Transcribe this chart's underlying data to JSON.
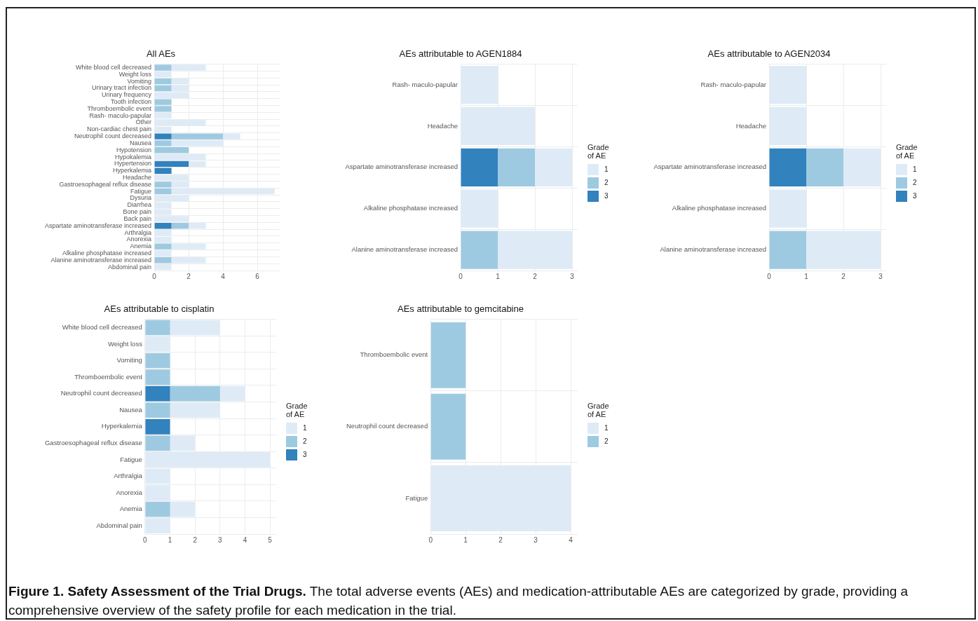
{
  "chart_data": [
    {
      "type": "bar",
      "title": "All AEs",
      "orientation": "horizontal",
      "stacked": true,
      "grid": true,
      "legend": false,
      "categories": [
        "White blood cell decreased",
        "Weight loss",
        "Vomiting",
        "Urinary tract infection",
        "Urinary frequency",
        "Tooth infection",
        "Thromboembolic event",
        "Rash- maculo-papular",
        "Other",
        "Non-cardiac chest pain",
        "Neutrophil count decreased",
        "Nausea",
        "Hypotension",
        "Hypokalemia",
        "Hypertension",
        "Hyperkalemia",
        "Headache",
        "Gastroesophageal reflux disease",
        "Fatigue",
        "Dysuria",
        "Diarrhea",
        "Bone pain",
        "Back pain",
        "Aspartate aminotransferase increased",
        "Arthralgia",
        "Anorexia",
        "Anemia",
        "Alkaline phosphatase increased",
        "Alanine aminotransferase increased",
        "Abdominal pain"
      ],
      "series": [
        {
          "name": "3",
          "color": "#3182bd",
          "values": [
            null,
            null,
            null,
            null,
            null,
            null,
            null,
            null,
            null,
            null,
            1,
            null,
            null,
            null,
            2,
            1,
            null,
            null,
            null,
            null,
            null,
            null,
            null,
            1,
            null,
            null,
            null,
            null,
            null,
            null
          ]
        },
        {
          "name": "2",
          "color": "#9ecae1",
          "values": [
            1,
            null,
            1,
            1,
            null,
            1,
            1,
            null,
            null,
            null,
            3,
            1,
            2,
            null,
            null,
            null,
            null,
            1,
            1,
            null,
            null,
            null,
            null,
            1,
            null,
            null,
            1,
            null,
            1,
            null
          ]
        },
        {
          "name": "1",
          "color": "#deebf7",
          "values": [
            2,
            1,
            1,
            1,
            2,
            null,
            null,
            1,
            3,
            1,
            1,
            3,
            null,
            3,
            1,
            null,
            2,
            1,
            6,
            2,
            1,
            1,
            2,
            1,
            1,
            1,
            2,
            1,
            2,
            1
          ]
        }
      ],
      "xlim": [
        0,
        7.3
      ],
      "xticks": [
        0,
        2,
        4,
        6
      ],
      "annotations": [
        "Figure 1. Safety Assessment of the Trial Drugs.",
        "The total adverse events (AEs) and medication-attributable AEs are categorized by grade, providing a comprehensive overview of the safety profile for each medication in the trial."
      ]
    },
    {
      "type": "bar",
      "title": "AEs attributable to AGEN1884",
      "orientation": "horizontal",
      "stacked": true,
      "grid": true,
      "legend": "right",
      "legend_title": "Grade of AE",
      "categories": [
        "Rash- maculo-papular",
        "Headache",
        "Aspartate aminotransferase increased",
        "Alkaline phosphatase increased",
        "Alanine aminotransferase increased"
      ],
      "series": [
        {
          "name": "3",
          "color": "#3182bd",
          "values": [
            null,
            null,
            1,
            null,
            null
          ]
        },
        {
          "name": "2",
          "color": "#9ecae1",
          "values": [
            null,
            null,
            1,
            null,
            1
          ]
        },
        {
          "name": "1",
          "color": "#deebf7",
          "values": [
            1,
            2,
            1,
            1,
            2
          ]
        }
      ],
      "xlim": [
        0,
        3.15
      ],
      "xticks": [
        0,
        1,
        2,
        3
      ]
    },
    {
      "type": "bar",
      "title": "AEs attributable to AGEN2034",
      "orientation": "horizontal",
      "stacked": true,
      "grid": true,
      "legend": "right",
      "legend_title": "Grade of AE",
      "categories": [
        "Rash- maculo-papular",
        "Headache",
        "Aspartate aminotransferase increased",
        "Alkaline phosphatase increased",
        "Alanine aminotransferase increased"
      ],
      "series": [
        {
          "name": "3",
          "color": "#3182bd",
          "values": [
            null,
            null,
            1,
            null,
            null
          ]
        },
        {
          "name": "2",
          "color": "#9ecae1",
          "values": [
            null,
            null,
            1,
            null,
            1
          ]
        },
        {
          "name": "1",
          "color": "#deebf7",
          "values": [
            1,
            1,
            1,
            1,
            2
          ]
        }
      ],
      "xlim": [
        0,
        3.15
      ],
      "xticks": [
        0,
        1,
        2,
        3
      ]
    },
    {
      "type": "bar",
      "title": "AEs attributable to cisplatin",
      "orientation": "horizontal",
      "stacked": true,
      "grid": true,
      "legend": "right",
      "legend_title": "Grade of AE",
      "categories": [
        "White blood cell decreased",
        "Weight loss",
        "Vomiting",
        "Thromboembolic event",
        "Neutrophil count decreased",
        "Nausea",
        "Hyperkalemia",
        "Gastroesophageal reflux disease",
        "Fatigue",
        "Arthralgia",
        "Anorexia",
        "Anemia",
        "Abdominal pain"
      ],
      "series": [
        {
          "name": "3",
          "color": "#3182bd",
          "values": [
            null,
            null,
            null,
            null,
            1,
            null,
            1,
            null,
            null,
            null,
            null,
            null,
            null
          ]
        },
        {
          "name": "2",
          "color": "#9ecae1",
          "values": [
            1,
            null,
            1,
            1,
            2,
            1,
            null,
            1,
            null,
            null,
            null,
            1,
            null
          ]
        },
        {
          "name": "1",
          "color": "#deebf7",
          "values": [
            2,
            1,
            null,
            null,
            1,
            2,
            null,
            1,
            5,
            1,
            1,
            1,
            1
          ]
        }
      ],
      "xlim": [
        0,
        5.25
      ],
      "xticks": [
        0,
        1,
        2,
        3,
        4,
        5
      ]
    },
    {
      "type": "bar",
      "title": "AEs attributable to gemcitabine",
      "orientation": "horizontal",
      "stacked": true,
      "grid": true,
      "legend": "right",
      "legend_title": "Grade of AE",
      "categories": [
        "Thromboembolic event",
        "Neutrophil count decreased",
        "Fatigue"
      ],
      "series": [
        {
          "name": "2",
          "color": "#9ecae1",
          "values": [
            1,
            1,
            null
          ]
        },
        {
          "name": "1",
          "color": "#deebf7",
          "values": [
            null,
            null,
            4
          ]
        }
      ],
      "xlim": [
        0,
        4.2
      ],
      "xticks": [
        0,
        1,
        2,
        3,
        4
      ]
    }
  ]
}
